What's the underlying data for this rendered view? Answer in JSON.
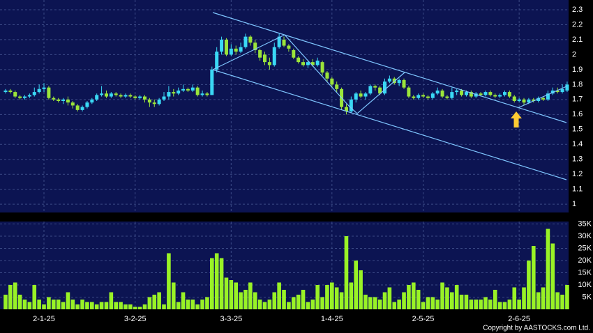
{
  "chart_data": [
    {
      "type": "candlestick",
      "up_color": "#3ad8f5",
      "down_color": "#9be43a",
      "grid": true,
      "xlim": [
        -1.16,
        117.3
      ],
      "ylim": [
        0.945,
        2.365
      ],
      "yticks": [
        {
          "value": 2.3,
          "label": "2.3"
        },
        {
          "value": 2.2,
          "label": "2.2"
        },
        {
          "value": 2.1,
          "label": "2.1"
        },
        2,
        {
          "value": 1.9,
          "label": "1.9"
        },
        {
          "value": 1.8,
          "label": "1.8"
        },
        {
          "value": 1.7,
          "label": "1.7"
        },
        {
          "value": 1.6,
          "label": "1.6"
        },
        {
          "value": 1.5,
          "label": "1.5"
        },
        {
          "value": 1.4,
          "label": "1.4"
        },
        {
          "value": 1.3,
          "label": "1.3"
        },
        {
          "value": 1.2,
          "label": "1.2"
        },
        {
          "value": 1.1,
          "label": "1.1"
        },
        1
      ],
      "open": [
        1.75,
        1.76,
        1.75,
        1.72,
        1.71,
        1.72,
        1.73,
        1.75,
        1.77,
        1.78,
        1.71,
        1.7,
        1.69,
        1.7,
        1.68,
        1.66,
        1.63,
        1.65,
        1.68,
        1.7,
        1.73,
        1.74,
        1.72,
        1.74,
        1.73,
        1.72,
        1.73,
        1.72,
        1.71,
        1.72,
        1.7,
        1.68,
        1.67,
        1.7,
        1.72,
        1.75,
        1.74,
        1.76,
        1.77,
        1.76,
        1.78,
        1.73,
        1.74,
        1.73,
        1.9,
        2.02,
        2.1,
        2.0,
        2.04,
        2.02,
        2.05,
        2.12,
        2.08,
        2.03,
        2.0,
        1.95,
        1.93,
        2.05,
        2.1,
        2.06,
        2.03,
        1.98,
        1.95,
        1.93,
        1.95,
        1.93,
        1.95,
        1.88,
        1.84,
        1.8,
        1.77,
        1.65,
        1.62,
        1.7,
        1.74,
        1.72,
        1.74,
        1.79,
        1.78,
        1.74,
        1.82,
        1.84,
        1.81,
        1.83,
        1.78,
        1.72,
        1.71,
        1.73,
        1.72,
        1.71,
        1.74,
        1.76,
        1.72,
        1.71,
        1.75,
        1.76,
        1.73,
        1.75,
        1.72,
        1.74,
        1.73,
        1.75,
        1.73,
        1.72,
        1.73,
        1.75,
        1.72,
        1.69,
        1.7,
        1.68,
        1.7,
        1.69,
        1.71,
        1.7,
        1.74,
        1.76,
        1.75,
        1.76
      ],
      "high": [
        1.77,
        1.77,
        1.76,
        1.73,
        1.73,
        1.74,
        1.78,
        1.8,
        1.81,
        1.79,
        1.72,
        1.71,
        1.71,
        1.72,
        1.69,
        1.67,
        1.66,
        1.69,
        1.71,
        1.74,
        1.79,
        1.76,
        1.75,
        1.75,
        1.74,
        1.74,
        1.74,
        1.73,
        1.73,
        1.73,
        1.71,
        1.7,
        1.71,
        1.75,
        1.79,
        1.77,
        1.78,
        1.8,
        1.78,
        1.8,
        1.79,
        1.76,
        1.75,
        1.92,
        2.05,
        2.12,
        2.11,
        2.07,
        2.06,
        2.08,
        2.14,
        2.13,
        2.1,
        2.04,
        2.02,
        1.98,
        2.08,
        2.14,
        2.12,
        2.07,
        2.04,
        1.99,
        1.97,
        1.96,
        1.97,
        1.98,
        1.96,
        1.89,
        1.85,
        1.82,
        1.78,
        1.67,
        1.72,
        1.75,
        1.76,
        1.75,
        1.8,
        1.8,
        1.79,
        1.84,
        1.86,
        1.85,
        1.84,
        1.84,
        1.79,
        1.73,
        1.74,
        1.74,
        1.73,
        1.75,
        1.78,
        1.77,
        1.73,
        1.78,
        1.77,
        1.77,
        1.76,
        1.76,
        1.75,
        1.75,
        1.76,
        1.76,
        1.74,
        1.74,
        1.76,
        1.76,
        1.73,
        1.71,
        1.71,
        1.71,
        1.71,
        1.72,
        1.72,
        1.76,
        1.78,
        1.78,
        1.8,
        1.82
      ],
      "low": [
        1.74,
        1.74,
        1.71,
        1.7,
        1.7,
        1.71,
        1.72,
        1.74,
        1.75,
        1.7,
        1.69,
        1.68,
        1.67,
        1.66,
        1.64,
        1.62,
        1.62,
        1.64,
        1.67,
        1.69,
        1.72,
        1.71,
        1.71,
        1.72,
        1.71,
        1.71,
        1.71,
        1.7,
        1.7,
        1.68,
        1.65,
        1.65,
        1.66,
        1.69,
        1.7,
        1.72,
        1.73,
        1.75,
        1.75,
        1.75,
        1.72,
        1.72,
        1.72,
        1.73,
        1.88,
        2.0,
        1.99,
        1.99,
        2.0,
        2.01,
        2.04,
        2.06,
        2.01,
        1.96,
        1.93,
        1.9,
        1.92,
        2.04,
        2.05,
        2.02,
        1.97,
        1.94,
        1.92,
        1.91,
        1.92,
        1.92,
        1.86,
        1.82,
        1.78,
        1.75,
        1.63,
        1.6,
        1.61,
        1.68,
        1.71,
        1.7,
        1.73,
        1.76,
        1.73,
        1.73,
        1.81,
        1.8,
        1.79,
        1.77,
        1.71,
        1.7,
        1.7,
        1.71,
        1.7,
        1.7,
        1.73,
        1.71,
        1.7,
        1.7,
        1.73,
        1.72,
        1.72,
        1.71,
        1.71,
        1.72,
        1.72,
        1.72,
        1.71,
        1.71,
        1.72,
        1.71,
        1.68,
        1.68,
        1.66,
        1.67,
        1.68,
        1.68,
        1.69,
        1.69,
        1.73,
        1.74,
        1.74,
        1.75
      ],
      "close": [
        1.76,
        1.75,
        1.72,
        1.71,
        1.72,
        1.73,
        1.75,
        1.77,
        1.78,
        1.71,
        1.7,
        1.69,
        1.7,
        1.68,
        1.66,
        1.63,
        1.65,
        1.68,
        1.7,
        1.73,
        1.74,
        1.72,
        1.74,
        1.73,
        1.72,
        1.73,
        1.72,
        1.71,
        1.72,
        1.7,
        1.68,
        1.67,
        1.7,
        1.72,
        1.75,
        1.74,
        1.76,
        1.77,
        1.76,
        1.78,
        1.73,
        1.74,
        1.73,
        1.9,
        2.02,
        2.1,
        2.0,
        2.04,
        2.02,
        2.05,
        2.12,
        2.08,
        2.03,
        1.98,
        1.95,
        1.93,
        2.05,
        2.12,
        2.06,
        2.04,
        1.98,
        1.95,
        1.93,
        1.95,
        1.93,
        1.96,
        1.88,
        1.84,
        1.8,
        1.77,
        1.65,
        1.62,
        1.7,
        1.74,
        1.72,
        1.74,
        1.79,
        1.78,
        1.74,
        1.82,
        1.84,
        1.81,
        1.83,
        1.78,
        1.72,
        1.71,
        1.73,
        1.72,
        1.71,
        1.74,
        1.76,
        1.72,
        1.71,
        1.75,
        1.76,
        1.73,
        1.75,
        1.72,
        1.74,
        1.73,
        1.75,
        1.73,
        1.72,
        1.73,
        1.75,
        1.72,
        1.69,
        1.7,
        1.68,
        1.7,
        1.69,
        1.71,
        1.7,
        1.74,
        1.76,
        1.75,
        1.77,
        1.8
      ]
    },
    {
      "type": "bar",
      "color": "#99f226",
      "grid": true,
      "xlim": [
        -1.16,
        117.3
      ],
      "xticks": [
        {
          "value": 8,
          "label": "2-1-25"
        },
        {
          "value": 27,
          "label": "3-2-25"
        },
        {
          "value": 47,
          "label": "3-3-25"
        },
        {
          "value": 68,
          "label": "1-4-25"
        },
        {
          "value": 87,
          "label": "2-5-25"
        },
        {
          "value": 107,
          "label": "2-6-25"
        }
      ],
      "ylim": [
        0,
        36000
      ],
      "yticks": [
        {
          "value": 35000,
          "label": "35K"
        },
        {
          "value": 30000,
          "label": "30K"
        },
        {
          "value": 25000,
          "label": "25K"
        },
        {
          "value": 20000,
          "label": "20K"
        },
        {
          "value": 15000,
          "label": "15K"
        },
        {
          "value": 10000,
          "label": "10K"
        },
        {
          "value": 5000,
          "label": "5K"
        }
      ],
      "values": [
        6000,
        10000,
        11000,
        6000,
        4000,
        3000,
        10000,
        4000,
        2000,
        5000,
        4000,
        4000,
        3000,
        7000,
        4000,
        2000,
        4000,
        3000,
        3000,
        2000,
        3000,
        3000,
        7000,
        3000,
        3000,
        2000,
        2000,
        1000,
        1000,
        2000,
        5000,
        6000,
        7000,
        2000,
        23000,
        11000,
        3000,
        7000,
        4000,
        4000,
        2000,
        4000,
        5000,
        21000,
        23000,
        21000,
        13000,
        12000,
        11000,
        7000,
        8000,
        11000,
        7000,
        4000,
        3000,
        4000,
        7000,
        11000,
        8000,
        3000,
        5000,
        6000,
        8000,
        3000,
        4000,
        10000,
        5000,
        10000,
        11000,
        9000,
        7000,
        30000,
        11000,
        20000,
        16000,
        6000,
        5000,
        5000,
        4000,
        7000,
        9000,
        3000,
        4000,
        7000,
        10000,
        11000,
        8000,
        3000,
        5000,
        5000,
        4000,
        11000,
        9000,
        7000,
        10000,
        6000,
        6000,
        4000,
        4000,
        4000,
        5000,
        4000,
        8000,
        3000,
        3000,
        4000,
        9000,
        4000,
        9000,
        20000,
        26000,
        7000,
        9000,
        33000,
        27000,
        7000,
        6000,
        10000
      ]
    }
  ],
  "footer": "Copyright by AASTOCKS.com Ltd."
}
